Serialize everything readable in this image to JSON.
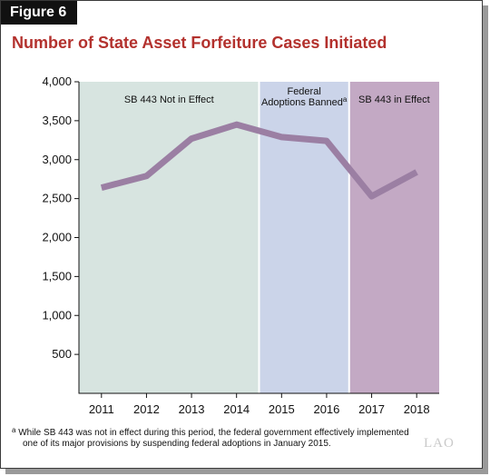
{
  "figure_label": "Figure 6",
  "chart_data": {
    "type": "line",
    "title": "Number of State Asset Forfeiture Cases Initiated",
    "xlabel": "",
    "ylabel": "",
    "categories": [
      "2011",
      "2012",
      "2013",
      "2014",
      "2015",
      "2016",
      "2017",
      "2018"
    ],
    "series": [
      {
        "values": [
          2640,
          2790,
          3270,
          3450,
          3290,
          3240,
          2530,
          2840
        ]
      }
    ],
    "ylim": [
      0,
      4000
    ],
    "yticks": [
      500,
      1000,
      1500,
      2000,
      2500,
      3000,
      3500,
      4000
    ],
    "ytick_labels": [
      "500",
      "1,000",
      "1,500",
      "2,000",
      "2,500",
      "3,000",
      "3,500",
      "4,000"
    ],
    "grid": false,
    "line_color": "#9b7fa3",
    "regions": [
      {
        "label_lines": [
          "SB 443 Not in Effect"
        ],
        "start": 0,
        "end": 3.5,
        "color": "#d7e4e0"
      },
      {
        "label_lines": [
          "Federal",
          "Adoptions Banned"
        ],
        "superscript": "a",
        "start": 3.5,
        "end": 5.5,
        "color": "#cbd4e9"
      },
      {
        "label_lines": [
          "SB 443 in Effect"
        ],
        "start": 5.5,
        "end": 7.5,
        "color": "#c3a9c4"
      }
    ]
  },
  "footnote": {
    "marker": "a",
    "line1": "While SB 443 was not in effect during this period, the federal government effectively implemented",
    "line2": "one of its major provisions by suspending federal adoptions in January 2015."
  },
  "logo_text": "LAO"
}
